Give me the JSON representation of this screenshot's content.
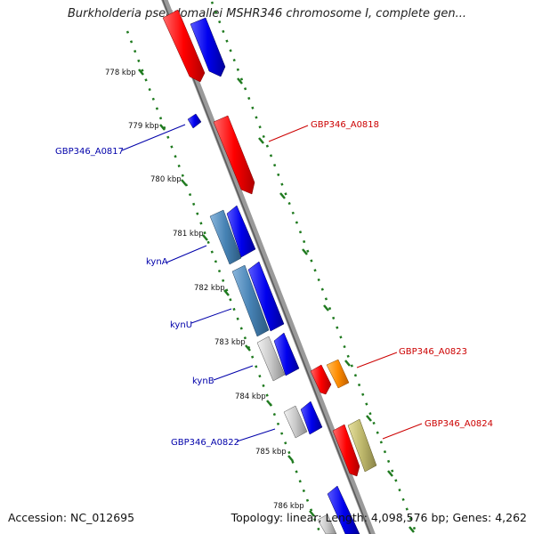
{
  "title": "Burkholderia pseudomallei MSHR346 chromosome I, complete gen...",
  "footer": {
    "accession": "Accession: NC_012695",
    "summary": "Topology: linear; Length: 4,098,576 bp; Genes: 4,262"
  },
  "ticks": [
    "778 kbp",
    "779 kbp",
    "780 kbp",
    "781 kbp",
    "782 kbp",
    "783 kbp",
    "784 kbp",
    "785 kbp",
    "786 kbp"
  ],
  "gene_labels": {
    "a0817": "GBP346_A0817",
    "kynA": "kynA",
    "kynU": "kynU",
    "kynB": "kynB",
    "a0822": "GBP346_A0822",
    "a0818": "GBP346_A0818",
    "a0823": "GBP346_A0823",
    "a0824": "GBP346_A0824"
  },
  "colors": {
    "backbone": "#7a7a7a",
    "ruler": "#1f7a1f",
    "forward_gene": "#e00000",
    "reverse_gene": "#0000e6",
    "cds_steelblue": "#4682b4",
    "cds_gray": "#bdbdbd",
    "cds_orange": "#ff8c00",
    "cds_khaki": "#bdb76b",
    "label_blue": "#0000aa",
    "label_red": "#cc0000"
  }
}
